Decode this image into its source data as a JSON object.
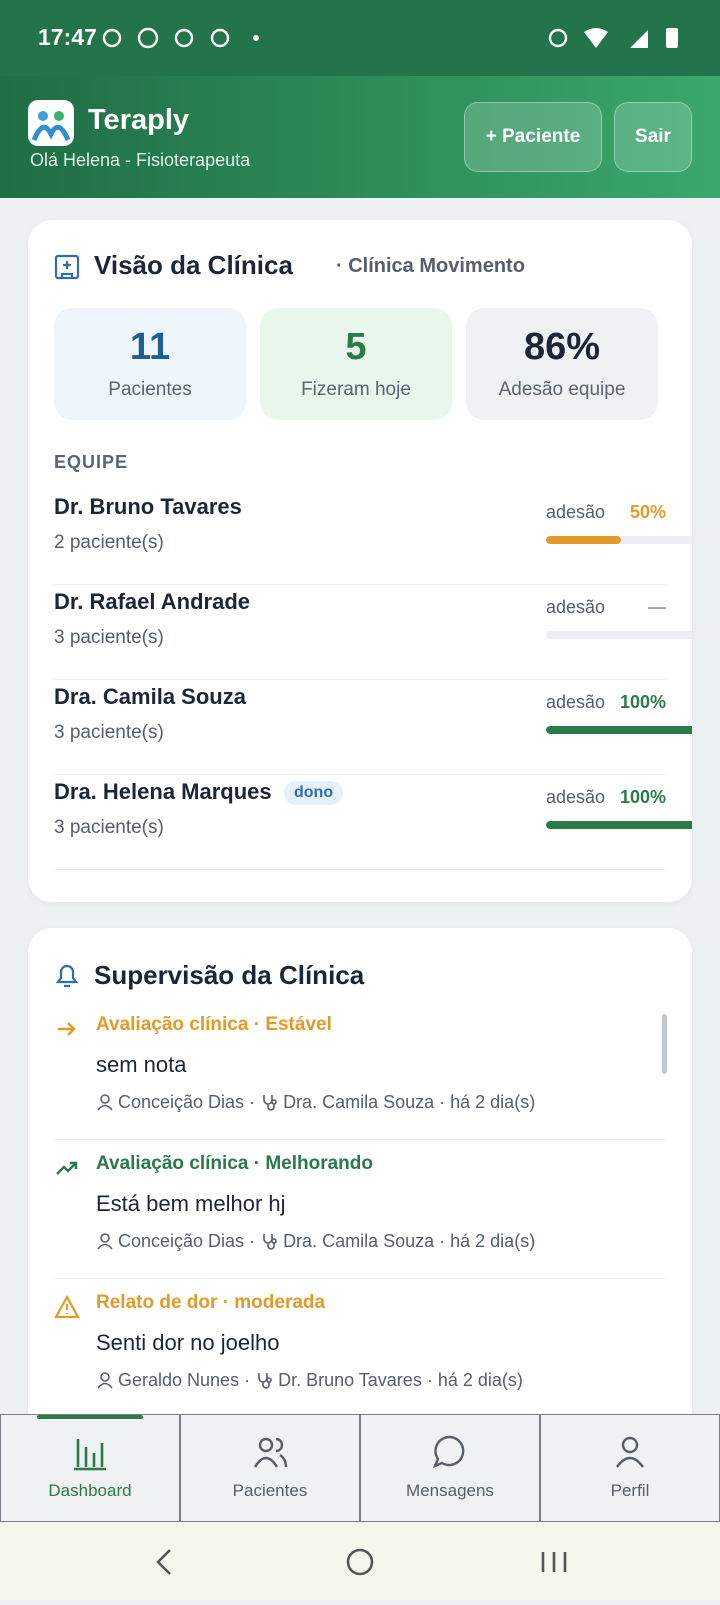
{
  "status_bar": {
    "time": "17:47"
  },
  "header": {
    "app_name": "Teraply",
    "greeting": "Olá Helena - Fisioterapeuta",
    "add_button": "+ Paciente",
    "exit_button": "Sair"
  },
  "clinic_card": {
    "title": "Visão da Clínica",
    "subtitle": "· Clínica Movimento",
    "stats": [
      {
        "value": "11",
        "label": "Pacientes",
        "color": "#1f5f8f",
        "bg": "#eef5fb"
      },
      {
        "value": "5",
        "label": "Fizeram hoje",
        "color": "#2a7a4a",
        "bg": "#e9f6ec"
      },
      {
        "value": "86%",
        "label": "Adesão equipe",
        "color": "#1c2639",
        "bg": "#eff1f5"
      }
    ],
    "team_heading": "EQUIPE",
    "team": [
      {
        "name": "Dr. Bruno Tavares",
        "patients": "2 paciente(s)",
        "adherence_label": "adesão",
        "adherence": {
          "value": 50,
          "label": "50%"
        },
        "color": "#e39a27"
      },
      {
        "name": "Dr. Rafael Andrade",
        "patients": "3 paciente(s)",
        "adherence_label": "adesão",
        "adherence": {
          "value": null,
          "label": "—"
        },
        "color": "#9aa3ad"
      },
      {
        "name": "Dra. Camila Souza",
        "patients": "3 paciente(s)",
        "adherence_label": "adesão",
        "adherence": {
          "value": 100,
          "label": "100%"
        },
        "color": "#2a7a4a"
      },
      {
        "name": "Dra. Helena Marques",
        "badge": "dono",
        "patients": "3 paciente(s)",
        "adherence_label": "adesão",
        "adherence": {
          "value": 100,
          "label": "100%"
        },
        "color": "#2a7a4a"
      }
    ]
  },
  "supervision_card": {
    "title": "Supervisão da Clínica",
    "items": [
      {
        "heading": "Avaliação clínica · Estável",
        "color": "#e39a27",
        "text": "sem nota",
        "patient": "Conceição Dias ·",
        "doctor": "Dra. Camila Souza ·",
        "time": "há 2 dia(s)"
      },
      {
        "heading": "Avaliação clínica · Melhorando",
        "color": "#2a7a4a",
        "text": "Está bem melhor hj",
        "patient": "Conceição Dias ·",
        "doctor": "Dra. Camila Souza ·",
        "time": "há 2 dia(s)"
      },
      {
        "heading": "Relato de dor · moderada",
        "color": "#e39a27",
        "text": "Senti dor no joelho",
        "patient": "Geraldo Nunes ·",
        "doctor": "Dr. Bruno Tavares ·",
        "time": "há 2 dia(s)"
      }
    ]
  },
  "bottom_nav": {
    "items": [
      "Dashboard",
      "Pacientes",
      "Mensagens",
      "Perfil"
    ],
    "active": "Dashboard"
  }
}
